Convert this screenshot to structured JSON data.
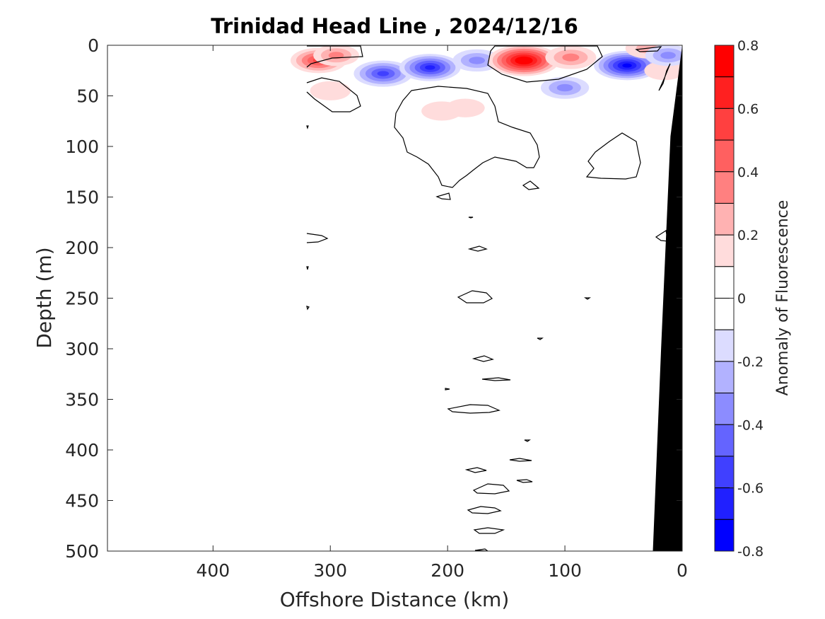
{
  "chart_data": {
    "type": "heatmap",
    "title": "Trinidad Head Line , 2024/12/16",
    "xlabel": "Offshore Distance (km)",
    "ylabel": "Depth (m)",
    "xlim": [
      490,
      0
    ],
    "ylim": [
      0,
      500
    ],
    "x_direction": "reversed",
    "y_direction": "reversed",
    "x_ticks": [
      400,
      300,
      200,
      100,
      0
    ],
    "y_ticks": [
      0,
      50,
      100,
      150,
      200,
      250,
      300,
      350,
      400,
      450,
      500
    ],
    "colorbar": {
      "label": "Anomaly of Fluorescence",
      "limits": [
        -0.8,
        0.8
      ],
      "ticks": [
        0.8,
        0.6,
        0.4,
        0.2,
        0,
        -0.2,
        -0.4,
        -0.6,
        -0.8
      ],
      "tick_labels": [
        "0.8",
        "0.6",
        "0.4",
        "0.2",
        "0",
        "-0.2",
        "-0.4",
        "-0.6",
        "-0.8"
      ],
      "levels": [
        {
          "from": 0.7,
          "to": 0.8,
          "color": "#ff0000"
        },
        {
          "from": 0.6,
          "to": 0.7,
          "color": "#ff2020"
        },
        {
          "from": 0.5,
          "to": 0.6,
          "color": "#ff4040"
        },
        {
          "from": 0.4,
          "to": 0.5,
          "color": "#ff6060"
        },
        {
          "from": 0.3,
          "to": 0.4,
          "color": "#ff8080"
        },
        {
          "from": 0.2,
          "to": 0.3,
          "color": "#ffb2b2"
        },
        {
          "from": 0.1,
          "to": 0.2,
          "color": "#ffdcdc"
        },
        {
          "from": 0.0,
          "to": 0.1,
          "color": "#ffffff"
        },
        {
          "from": -0.1,
          "to": 0.0,
          "color": "#ffffff"
        },
        {
          "from": -0.2,
          "to": -0.1,
          "color": "#dcdcff"
        },
        {
          "from": -0.3,
          "to": -0.2,
          "color": "#b2b2ff"
        },
        {
          "from": -0.4,
          "to": -0.3,
          "color": "#8c8cff"
        },
        {
          "from": -0.5,
          "to": -0.4,
          "color": "#6464ff"
        },
        {
          "from": -0.6,
          "to": -0.5,
          "color": "#4040ff"
        },
        {
          "from": -0.7,
          "to": -0.6,
          "color": "#2020ff"
        },
        {
          "from": -0.8,
          "to": -0.7,
          "color": "#0000ff"
        }
      ]
    },
    "data_extent_km": [
      0,
      320
    ],
    "anomaly_features": [
      {
        "distance_km": 310,
        "depth_m": 15,
        "anomaly": 0.45
      },
      {
        "distance_km": 295,
        "depth_m": 10,
        "anomaly": 0.25
      },
      {
        "distance_km": 255,
        "depth_m": 28,
        "anomaly": -0.5
      },
      {
        "distance_km": 215,
        "depth_m": 22,
        "anomaly": -0.55
      },
      {
        "distance_km": 175,
        "depth_m": 15,
        "anomaly": -0.3
      },
      {
        "distance_km": 300,
        "depth_m": 45,
        "anomaly": 0.15
      },
      {
        "distance_km": 205,
        "depth_m": 65,
        "anomaly": 0.15
      },
      {
        "distance_km": 185,
        "depth_m": 62,
        "anomaly": 0.12
      },
      {
        "distance_km": 135,
        "depth_m": 15,
        "anomaly": 0.75
      },
      {
        "distance_km": 95,
        "depth_m": 12,
        "anomaly": 0.35
      },
      {
        "distance_km": 100,
        "depth_m": 42,
        "anomaly": -0.3
      },
      {
        "distance_km": 47,
        "depth_m": 20,
        "anomaly": -0.65
      },
      {
        "distance_km": 30,
        "depth_m": 3,
        "anomaly": 0.2
      },
      {
        "distance_km": 15,
        "depth_m": 25,
        "anomaly": 0.15
      },
      {
        "distance_km": 12,
        "depth_m": 10,
        "anomaly": -0.25
      }
    ],
    "bathymetry": [
      [
        0,
        0
      ],
      [
        10,
        90
      ],
      [
        18,
        300
      ],
      [
        25,
        500
      ]
    ]
  }
}
